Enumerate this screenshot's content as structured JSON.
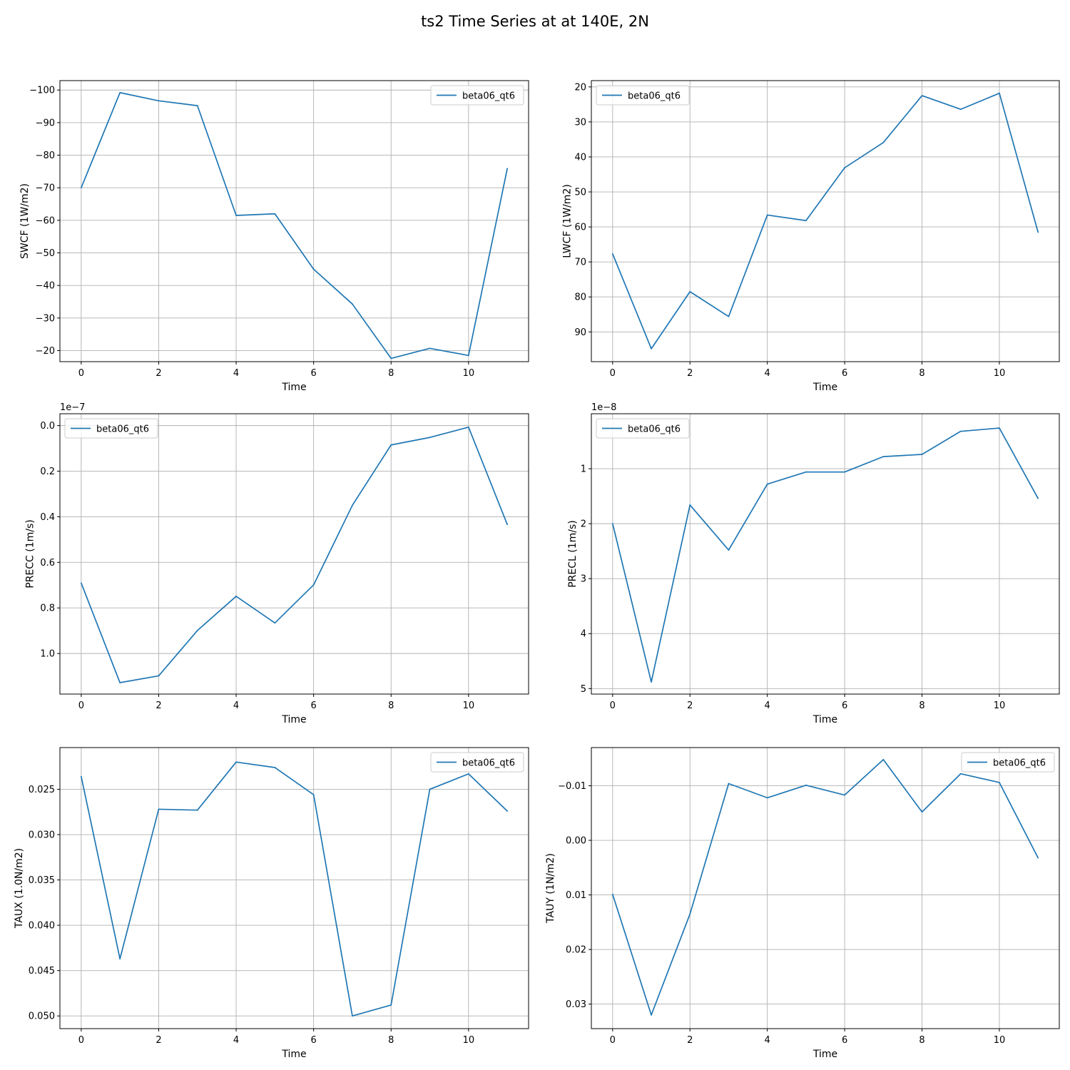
{
  "figure": {
    "title": "ts2 Time Series at at 140E, 2N"
  },
  "colors": {
    "series": "#1f77b4",
    "grid": "#b0b0b0",
    "axis": "#000000",
    "legend_border": "#cccccc"
  },
  "chart_data": [
    {
      "type": "line",
      "xlabel": "Time",
      "ylabel": "SWCF (1W/m2)",
      "legend_loc": "upper right",
      "inverted_y": true,
      "xlim": [
        -0.55,
        11.55
      ],
      "ylim": [
        -102.9,
        -16.6
      ],
      "xticks": [
        0,
        2,
        4,
        6,
        8,
        10
      ],
      "yticks": [
        -100,
        -90,
        -80,
        -70,
        -60,
        -50,
        -40,
        -30,
        -20
      ],
      "ytick_labels": [
        "−100",
        "−90",
        "−80",
        "−70",
        "−60",
        "−50",
        "−40",
        "−30",
        "−20"
      ],
      "offset_text": "",
      "x": [
        0,
        1,
        2,
        3,
        4,
        5,
        6,
        7,
        8,
        9,
        10,
        11
      ],
      "series": [
        {
          "name": "beta06_qt6",
          "values": [
            -70.0,
            -99.2,
            -96.7,
            -95.2,
            -61.5,
            -62.0,
            -45.0,
            -34.3,
            -17.6,
            -20.7,
            -18.5,
            -75.9
          ]
        }
      ]
    },
    {
      "type": "line",
      "xlabel": "Time",
      "ylabel": "LWCF (1W/m2)",
      "legend_loc": "upper left",
      "inverted_y": true,
      "xlim": [
        -0.55,
        11.55
      ],
      "ylim": [
        18.2,
        98.5
      ],
      "xticks": [
        0,
        2,
        4,
        6,
        8,
        10
      ],
      "yticks": [
        20,
        30,
        40,
        50,
        60,
        70,
        80,
        90
      ],
      "ytick_labels": [
        "20",
        "30",
        "40",
        "50",
        "60",
        "70",
        "80",
        "90"
      ],
      "offset_text": "",
      "x": [
        0,
        1,
        2,
        3,
        4,
        5,
        6,
        7,
        8,
        9,
        10,
        11
      ],
      "series": [
        {
          "name": "beta06_qt6",
          "values": [
            67.7,
            94.8,
            78.5,
            85.6,
            56.6,
            58.2,
            43.1,
            35.9,
            22.5,
            26.4,
            21.8,
            61.5
          ]
        }
      ]
    },
    {
      "type": "line",
      "xlabel": "Time",
      "ylabel": "PRECC (1m/s)",
      "legend_loc": "upper left",
      "inverted_y": true,
      "xlim": [
        -0.55,
        11.55
      ],
      "ylim": [
        -0.052,
        1.178
      ],
      "xticks": [
        0,
        2,
        4,
        6,
        8,
        10
      ],
      "yticks": [
        0.0,
        0.2,
        0.4,
        0.6,
        0.8,
        1.0
      ],
      "ytick_labels": [
        "0.0",
        "0.2",
        "0.4",
        "0.6",
        "0.8",
        "1.0"
      ],
      "offset_text": "1e−7",
      "x": [
        0,
        1,
        2,
        3,
        4,
        5,
        6,
        7,
        8,
        9,
        10,
        11
      ],
      "series": [
        {
          "name": "beta06_qt6",
          "values": [
            0.691,
            1.128,
            1.098,
            0.899,
            0.749,
            0.866,
            0.699,
            0.35,
            0.085,
            0.052,
            0.007,
            0.434
          ]
        }
      ]
    },
    {
      "type": "line",
      "xlabel": "Time",
      "ylabel": "PRECL (1m/s)",
      "legend_loc": "upper left",
      "inverted_y": true,
      "xlim": [
        -0.55,
        11.55
      ],
      "ylim": [
        0.0,
        5.1
      ],
      "xticks": [
        0,
        2,
        4,
        6,
        8,
        10
      ],
      "yticks": [
        1,
        2,
        3,
        4,
        5
      ],
      "ytick_labels": [
        "1",
        "2",
        "3",
        "4",
        "5"
      ],
      "offset_text": "1e−8",
      "x": [
        0,
        1,
        2,
        3,
        4,
        5,
        6,
        7,
        8,
        9,
        10,
        11
      ],
      "series": [
        {
          "name": "beta06_qt6",
          "values": [
            2.0,
            4.88,
            1.66,
            2.48,
            1.28,
            1.06,
            1.06,
            0.78,
            0.74,
            0.32,
            0.26,
            1.54
          ]
        }
      ]
    },
    {
      "type": "line",
      "xlabel": "Time",
      "ylabel": "TAUX (1.0N/m2)",
      "legend_loc": "upper right",
      "inverted_y": true,
      "xlim": [
        -0.55,
        11.55
      ],
      "ylim": [
        0.0204,
        0.0514
      ],
      "xticks": [
        0,
        2,
        4,
        6,
        8,
        10
      ],
      "yticks": [
        0.025,
        0.03,
        0.035,
        0.04,
        0.045,
        0.05
      ],
      "ytick_labels": [
        "0.025",
        "0.030",
        "0.035",
        "0.040",
        "0.045",
        "0.050"
      ],
      "offset_text": "",
      "x": [
        0,
        1,
        2,
        3,
        4,
        5,
        6,
        7,
        8,
        9,
        10,
        11
      ],
      "series": [
        {
          "name": "beta06_qt6",
          "values": [
            0.0236,
            0.0437,
            0.0272,
            0.0273,
            0.022,
            0.0226,
            0.0256,
            0.05,
            0.0488,
            0.025,
            0.0233,
            0.0274
          ]
        }
      ]
    },
    {
      "type": "line",
      "xlabel": "Time",
      "ylabel": "TAUY (1N/m2)",
      "legend_loc": "upper right",
      "inverted_y": true,
      "xlim": [
        -0.55,
        11.55
      ],
      "ylim": [
        -0.017,
        0.0345
      ],
      "xticks": [
        0,
        2,
        4,
        6,
        8,
        10
      ],
      "yticks": [
        -0.01,
        0.0,
        0.01,
        0.02,
        0.03
      ],
      "ytick_labels": [
        "−0.01",
        "0.00",
        "0.01",
        "0.02",
        "0.03"
      ],
      "offset_text": "",
      "x": [
        0,
        1,
        2,
        3,
        4,
        5,
        6,
        7,
        8,
        9,
        10,
        11
      ],
      "series": [
        {
          "name": "beta06_qt6",
          "values": [
            0.0099,
            0.032,
            0.0135,
            -0.0104,
            -0.0078,
            -0.0101,
            -0.0083,
            -0.0148,
            -0.0052,
            -0.0122,
            -0.0106,
            0.0032
          ]
        }
      ]
    }
  ]
}
